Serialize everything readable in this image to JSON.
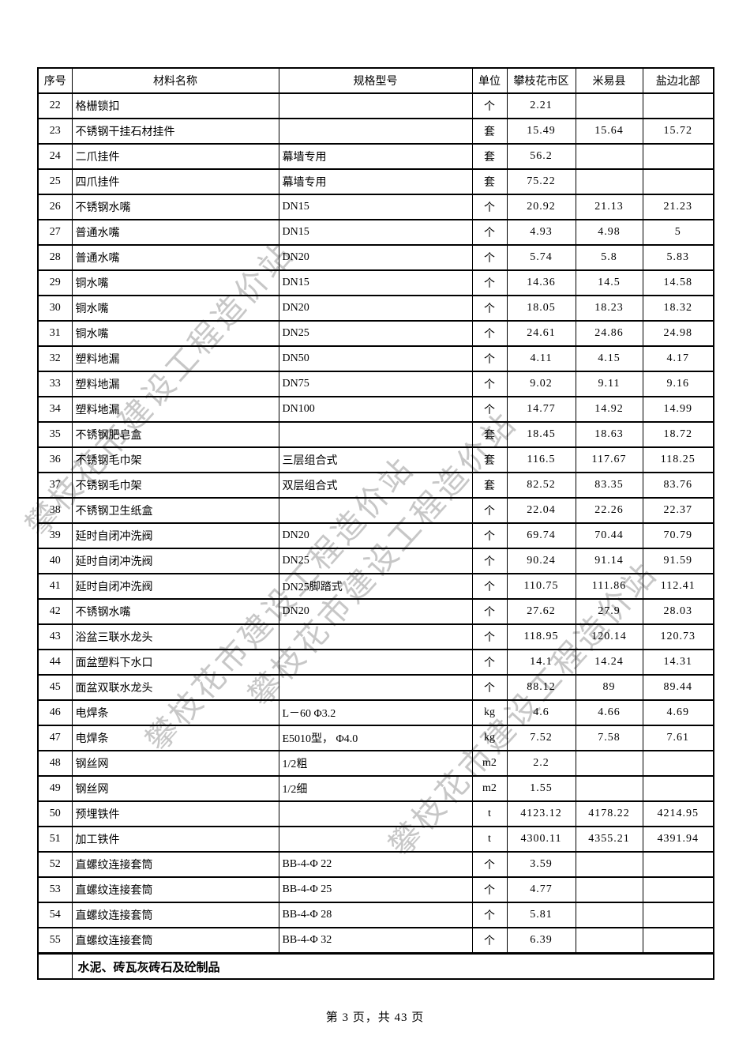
{
  "watermark": {
    "text": "攀枝花市建设工程造价站",
    "color": "#c6c6c6"
  },
  "table": {
    "headers": [
      "序号",
      "材料名称",
      "规格型号",
      "单位",
      "攀枝花市区",
      "米易县",
      "盐边北部"
    ],
    "rows": [
      [
        "22",
        "格栅锁扣",
        "",
        "个",
        "2.21",
        "",
        ""
      ],
      [
        "23",
        "不锈钢干挂石材挂件",
        "",
        "套",
        "15.49",
        "15.64",
        "15.72"
      ],
      [
        "24",
        "二爪挂件",
        "幕墙专用",
        "套",
        "56.2",
        "",
        ""
      ],
      [
        "25",
        "四爪挂件",
        "幕墙专用",
        "套",
        "75.22",
        "",
        ""
      ],
      [
        "26",
        "不锈钢水嘴",
        "DN15",
        "个",
        "20.92",
        "21.13",
        "21.23"
      ],
      [
        "27",
        "普通水嘴",
        "DN15",
        "个",
        "4.93",
        "4.98",
        "5"
      ],
      [
        "28",
        "普通水嘴",
        "DN20",
        "个",
        "5.74",
        "5.8",
        "5.83"
      ],
      [
        "29",
        "铜水嘴",
        "DN15",
        "个",
        "14.36",
        "14.5",
        "14.58"
      ],
      [
        "30",
        "铜水嘴",
        "DN20",
        "个",
        "18.05",
        "18.23",
        "18.32"
      ],
      [
        "31",
        "铜水嘴",
        "DN25",
        "个",
        "24.61",
        "24.86",
        "24.98"
      ],
      [
        "32",
        "塑料地漏",
        "DN50",
        "个",
        "4.11",
        "4.15",
        "4.17"
      ],
      [
        "33",
        "塑料地漏",
        "DN75",
        "个",
        "9.02",
        "9.11",
        "9.16"
      ],
      [
        "34",
        "塑料地漏",
        "DN100",
        "个",
        "14.77",
        "14.92",
        "14.99"
      ],
      [
        "35",
        "不锈钢肥皂盒",
        "",
        "套",
        "18.45",
        "18.63",
        "18.72"
      ],
      [
        "36",
        "不锈钢毛巾架",
        "三层组合式",
        "套",
        "116.5",
        "117.67",
        "118.25"
      ],
      [
        "37",
        "不锈钢毛巾架",
        "双层组合式",
        "套",
        "82.52",
        "83.35",
        "83.76"
      ],
      [
        "38",
        "不锈钢卫生纸盒",
        "",
        "个",
        "22.04",
        "22.26",
        "22.37"
      ],
      [
        "39",
        "延时自闭冲洗阀",
        "DN20",
        "个",
        "69.74",
        "70.44",
        "70.79"
      ],
      [
        "40",
        "延时自闭冲洗阀",
        "DN25",
        "个",
        "90.24",
        "91.14",
        "91.59"
      ],
      [
        "41",
        "延时自闭冲洗阀",
        "DN25脚踏式",
        "个",
        "110.75",
        "111.86",
        "112.41"
      ],
      [
        "42",
        "不锈钢水嘴",
        "DN20",
        "个",
        "27.62",
        "27.9",
        "28.03"
      ],
      [
        "43",
        "浴盆三联水龙头",
        "",
        "个",
        "118.95",
        "120.14",
        "120.73"
      ],
      [
        "44",
        "面盆塑料下水口",
        "",
        "个",
        "14.1",
        "14.24",
        "14.31"
      ],
      [
        "45",
        "面盆双联水龙头",
        "",
        "个",
        "88.12",
        "89",
        "89.44"
      ],
      [
        "46",
        "电焊条",
        "L－60 Φ3.2",
        "kg",
        "4.6",
        "4.66",
        "4.69"
      ],
      [
        "47",
        "电焊条",
        "E5010型， Φ4.0",
        "kg",
        "7.52",
        "7.58",
        "7.61"
      ],
      [
        "48",
        "钢丝网",
        "1/2粗",
        "m2",
        "2.2",
        "",
        ""
      ],
      [
        "49",
        "钢丝网",
        "1/2细",
        "m2",
        "1.55",
        "",
        ""
      ],
      [
        "50",
        "预埋铁件",
        "",
        "t",
        "4123.12",
        "4178.22",
        "4214.95"
      ],
      [
        "51",
        "加工铁件",
        "",
        "t",
        "4300.11",
        "4355.21",
        "4391.94"
      ],
      [
        "52",
        "直螺纹连接套筒",
        "BB-4-Φ 22",
        "个",
        "3.59",
        "",
        ""
      ],
      [
        "53",
        "直螺纹连接套筒",
        "BB-4-Φ 25",
        "个",
        "4.77",
        "",
        ""
      ],
      [
        "54",
        "直螺纹连接套筒",
        "BB-4-Φ 28",
        "个",
        "5.81",
        "",
        ""
      ],
      [
        "55",
        "直螺纹连接套筒",
        "BB-4-Φ 32",
        "个",
        "6.39",
        "",
        ""
      ]
    ],
    "section_footer": "水泥、砖瓦灰砖石及砼制品"
  },
  "page": {
    "footer": "第 3 页，共 43 页"
  }
}
